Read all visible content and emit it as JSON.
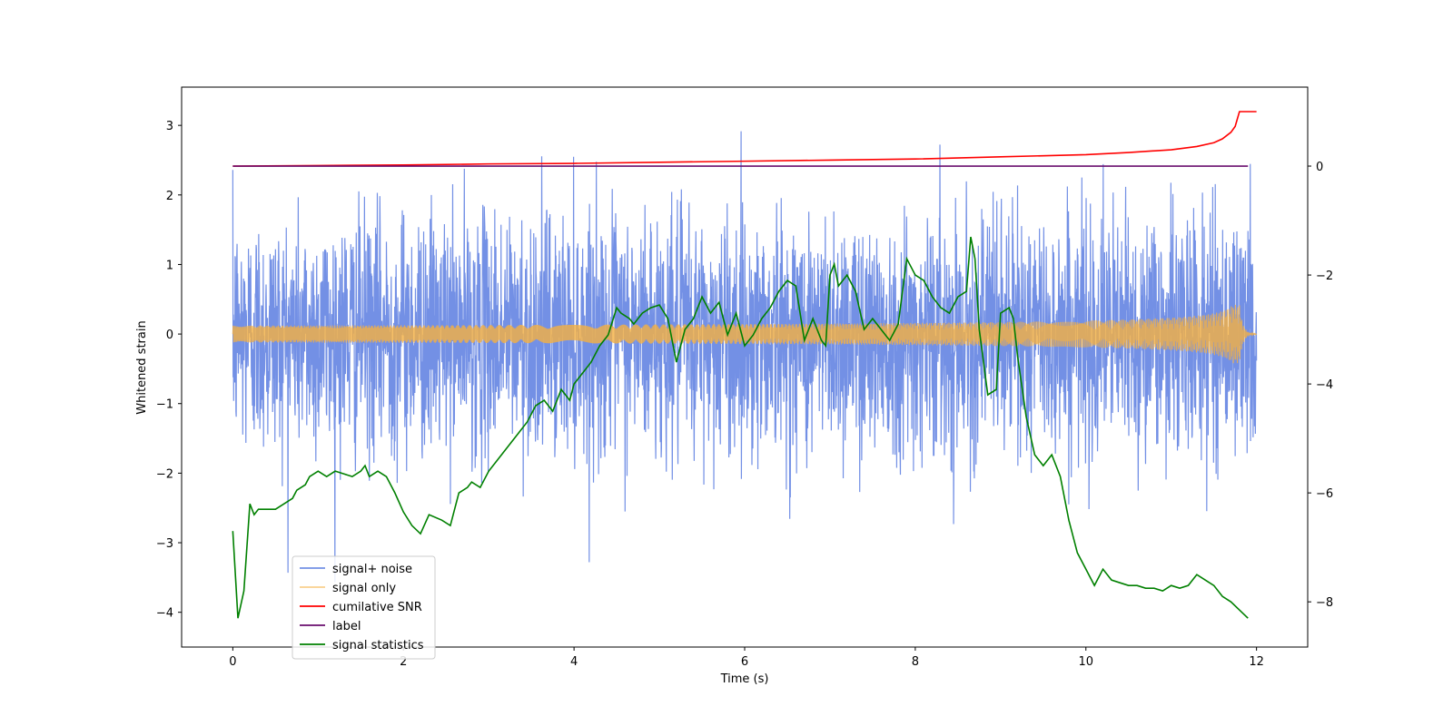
{
  "chart_data": {
    "type": "line",
    "title": "",
    "xlabel": "Time (s)",
    "ylabel": "Whitened strain",
    "y2label": "",
    "xlim": [
      -0.6,
      12.6
    ],
    "ylim": [
      -4.5,
      3.55
    ],
    "y2lim": [
      -8.83,
      1.45
    ],
    "xticks": [
      0,
      2,
      4,
      6,
      8,
      10,
      12
    ],
    "yticks": [
      3,
      2,
      1,
      0,
      -1,
      -2,
      -3,
      -4
    ],
    "y2ticks": [
      0,
      -2,
      -4,
      -6,
      -8
    ],
    "legend_position": "lower-left",
    "series": [
      {
        "name": "signal+ noise",
        "axis": "left",
        "color": "#6c8ae4",
        "style": "noise",
        "x_range": [
          0,
          12
        ],
        "amplitude_std": 0.85,
        "min": -4.15,
        "max": 3.2
      },
      {
        "name": "signal only",
        "axis": "left",
        "color": "#f5b041",
        "style": "chirp",
        "x_range": [
          0,
          12
        ],
        "peak_time": 11.8,
        "peak_amplitude": 0.42
      },
      {
        "name": "cumilative SNR",
        "axis": "right",
        "color": "#ff0000",
        "x": [
          0,
          1,
          2,
          3,
          4,
          5,
          6,
          7,
          8,
          9,
          10,
          10.5,
          11,
          11.3,
          11.5,
          11.6,
          11.7,
          11.75,
          11.8,
          12
        ],
        "y": [
          0,
          0.01,
          0.02,
          0.04,
          0.05,
          0.07,
          0.09,
          0.11,
          0.13,
          0.17,
          0.21,
          0.25,
          0.3,
          0.36,
          0.43,
          0.5,
          0.62,
          0.73,
          1,
          1
        ]
      },
      {
        "name": "label",
        "axis": "right",
        "color": "#6a0e6e",
        "x": [
          0,
          11.9
        ],
        "y": [
          0,
          0
        ]
      },
      {
        "name": "signal statistics",
        "axis": "right",
        "color": "#008000",
        "x": [
          0,
          0.06,
          0.13,
          0.2,
          0.25,
          0.3,
          0.35,
          0.4,
          0.5,
          0.6,
          0.7,
          0.75,
          0.85,
          0.9,
          1.0,
          1.1,
          1.2,
          1.3,
          1.4,
          1.5,
          1.55,
          1.6,
          1.7,
          1.8,
          1.9,
          2.0,
          2.1,
          2.2,
          2.3,
          2.45,
          2.55,
          2.65,
          2.75,
          2.8,
          2.9,
          3.0,
          3.1,
          3.2,
          3.3,
          3.35,
          3.45,
          3.55,
          3.65,
          3.75,
          3.85,
          3.95,
          4.0,
          4.1,
          4.2,
          4.3,
          4.4,
          4.5,
          4.55,
          4.65,
          4.7,
          4.8,
          4.9,
          5.0,
          5.1,
          5.2,
          5.3,
          5.4,
          5.5,
          5.6,
          5.7,
          5.8,
          5.9,
          6.0,
          6.1,
          6.2,
          6.3,
          6.4,
          6.5,
          6.6,
          6.7,
          6.8,
          6.9,
          6.95,
          7.0,
          7.05,
          7.1,
          7.2,
          7.3,
          7.4,
          7.5,
          7.6,
          7.7,
          7.8,
          7.9,
          8.0,
          8.1,
          8.2,
          8.3,
          8.4,
          8.5,
          8.6,
          8.65,
          8.7,
          8.75,
          8.85,
          8.95,
          9.0,
          9.1,
          9.15,
          9.2,
          9.3,
          9.4,
          9.5,
          9.6,
          9.7,
          9.8,
          9.9,
          10.0,
          10.1,
          10.2,
          10.3,
          10.4,
          10.5,
          10.6,
          10.7,
          10.8,
          10.9,
          11.0,
          11.1,
          11.2,
          11.3,
          11.4,
          11.5,
          11.6,
          11.7,
          11.8,
          11.9
        ],
        "y": [
          -6.7,
          -8.3,
          -7.8,
          -6.2,
          -6.4,
          -6.3,
          -6.3,
          -6.3,
          -6.3,
          -6.2,
          -6.1,
          -5.95,
          -5.85,
          -5.7,
          -5.6,
          -5.7,
          -5.6,
          -5.65,
          -5.7,
          -5.6,
          -5.5,
          -5.7,
          -5.6,
          -5.7,
          -6.0,
          -6.35,
          -6.6,
          -6.75,
          -6.4,
          -6.5,
          -6.6,
          -6.0,
          -5.9,
          -5.8,
          -5.9,
          -5.6,
          -5.4,
          -5.2,
          -5.0,
          -4.9,
          -4.7,
          -4.4,
          -4.3,
          -4.5,
          -4.1,
          -4.3,
          -4.0,
          -3.8,
          -3.6,
          -3.3,
          -3.1,
          -2.6,
          -2.7,
          -2.8,
          -2.9,
          -2.7,
          -2.6,
          -2.55,
          -2.8,
          -3.6,
          -3.0,
          -2.8,
          -2.4,
          -2.7,
          -2.5,
          -3.1,
          -2.7,
          -3.3,
          -3.1,
          -2.8,
          -2.6,
          -2.3,
          -2.1,
          -2.2,
          -3.2,
          -2.8,
          -3.2,
          -3.3,
          -2.0,
          -1.8,
          -2.2,
          -2.0,
          -2.3,
          -3.0,
          -2.8,
          -3.0,
          -3.2,
          -2.9,
          -1.7,
          -2.0,
          -2.1,
          -2.4,
          -2.6,
          -2.7,
          -2.4,
          -2.3,
          -1.3,
          -1.7,
          -3.0,
          -4.2,
          -4.1,
          -2.7,
          -2.6,
          -2.8,
          -3.5,
          -4.6,
          -5.3,
          -5.5,
          -5.3,
          -5.7,
          -6.5,
          -7.1,
          -7.4,
          -7.7,
          -7.4,
          -7.6,
          -7.65,
          -7.7,
          -7.7,
          -7.75,
          -7.75,
          -7.8,
          -7.7,
          -7.75,
          -7.7,
          -7.5,
          -7.6,
          -7.7,
          -7.9,
          -8.0,
          -8.15,
          -8.3
        ]
      }
    ]
  }
}
